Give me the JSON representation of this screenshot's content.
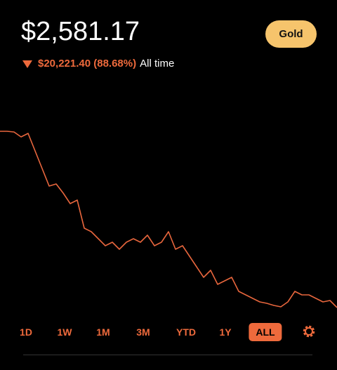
{
  "header": {
    "balance": "$2,581.17",
    "badge": "Gold",
    "change": "$20,221.40 (88.68%)",
    "period": "All time"
  },
  "chart_data": {
    "type": "line",
    "color": "#e8663d",
    "ylim": [
      2000,
      23500
    ],
    "values": [
      22800,
      22800,
      22719,
      22156,
      22558,
      20544,
      18530,
      16516,
      16758,
      15711,
      14502,
      14905,
      11683,
      11280,
      10474,
      9669,
      10072,
      9266,
      10072,
      10474,
      10072,
      10877,
      9669,
      10072,
      11280,
      9266,
      9669,
      8460,
      7252,
      6044,
      6849,
      5238,
      5641,
      6044,
      4432,
      4030,
      3627,
      3224,
      3063,
      2821,
      2660,
      3224,
      4432,
      4030,
      4030,
      3627,
      3224,
      3385,
      2581.17
    ]
  },
  "ranges": {
    "items": [
      "1D",
      "1W",
      "1M",
      "3M",
      "YTD",
      "1Y",
      "ALL"
    ],
    "active": "ALL"
  }
}
